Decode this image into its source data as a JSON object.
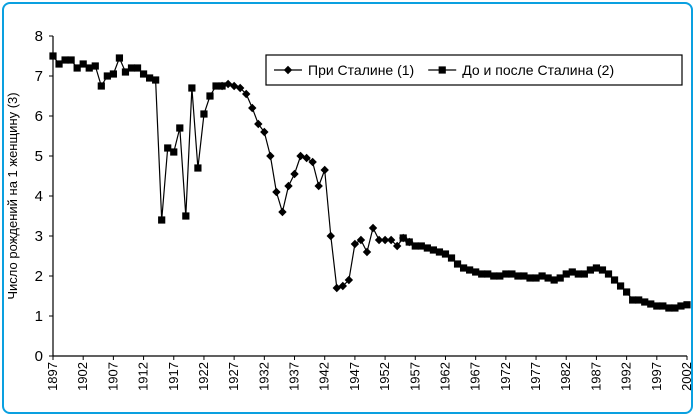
{
  "chart_data": {
    "type": "line",
    "title": "",
    "xlabel": "",
    "ylabel": "Число рождений на 1 женщину (3)",
    "xlim": [
      1897,
      2002
    ],
    "ylim": [
      0,
      8
    ],
    "yticks": [
      0,
      1,
      2,
      3,
      4,
      5,
      6,
      7,
      8
    ],
    "xticks": [
      1897,
      1902,
      1907,
      1912,
      1917,
      1922,
      1927,
      1932,
      1937,
      1942,
      1947,
      1952,
      1957,
      1962,
      1967,
      1972,
      1977,
      1982,
      1987,
      1992,
      1997,
      2002
    ],
    "legend_position": "top-right",
    "grid": false,
    "colors": {
      "line": "#000000",
      "frame": "#0aa0e0"
    },
    "series": [
      {
        "name": "При Сталине (1)",
        "marker": "diamond",
        "points": [
          [
            1925,
            6.75
          ],
          [
            1926,
            6.8
          ],
          [
            1927,
            6.75
          ],
          [
            1928,
            6.7
          ],
          [
            1929,
            6.55
          ],
          [
            1930,
            6.2
          ],
          [
            1931,
            5.8
          ],
          [
            1932,
            5.6
          ],
          [
            1933,
            5.0
          ],
          [
            1934,
            4.1
          ],
          [
            1935,
            3.6
          ],
          [
            1936,
            4.25
          ],
          [
            1937,
            4.55
          ],
          [
            1938,
            5.0
          ],
          [
            1939,
            4.95
          ],
          [
            1940,
            4.85
          ],
          [
            1941,
            4.25
          ],
          [
            1942,
            4.65
          ],
          [
            1943,
            3.0
          ],
          [
            1944,
            1.7
          ],
          [
            1945,
            1.75
          ],
          [
            1946,
            1.9
          ],
          [
            1947,
            2.8
          ],
          [
            1948,
            2.9
          ],
          [
            1949,
            2.6
          ],
          [
            1950,
            3.2
          ],
          [
            1951,
            2.9
          ],
          [
            1952,
            2.9
          ],
          [
            1953,
            2.9
          ],
          [
            1954,
            2.75
          ],
          [
            1955,
            2.95
          ],
          [
            1956,
            2.85
          ]
        ]
      },
      {
        "name": "До и после Сталина (2)",
        "marker": "square",
        "points": [
          [
            1897,
            7.5
          ],
          [
            1898,
            7.3
          ],
          [
            1899,
            7.4
          ],
          [
            1900,
            7.4
          ],
          [
            1901,
            7.2
          ],
          [
            1902,
            7.3
          ],
          [
            1903,
            7.2
          ],
          [
            1904,
            7.25
          ],
          [
            1905,
            6.75
          ],
          [
            1906,
            7.0
          ],
          [
            1907,
            7.05
          ],
          [
            1908,
            7.45
          ],
          [
            1909,
            7.1
          ],
          [
            1910,
            7.2
          ],
          [
            1911,
            7.2
          ],
          [
            1912,
            7.05
          ],
          [
            1913,
            6.95
          ],
          [
            1914,
            6.9
          ],
          [
            1915,
            3.4
          ],
          [
            1916,
            5.2
          ],
          [
            1917,
            5.1
          ],
          [
            1918,
            5.7
          ],
          [
            1919,
            3.5
          ],
          [
            1920,
            6.7
          ],
          [
            1921,
            4.7
          ],
          [
            1922,
            6.05
          ],
          [
            1923,
            6.5
          ],
          [
            1924,
            6.75
          ],
          [
            1925,
            6.75
          ],
          [
            1955,
            2.95
          ],
          [
            1956,
            2.85
          ],
          [
            1957,
            2.75
          ],
          [
            1958,
            2.75
          ],
          [
            1959,
            2.7
          ],
          [
            1960,
            2.65
          ],
          [
            1961,
            2.6
          ],
          [
            1962,
            2.55
          ],
          [
            1963,
            2.45
          ],
          [
            1964,
            2.3
          ],
          [
            1965,
            2.2
          ],
          [
            1966,
            2.15
          ],
          [
            1967,
            2.1
          ],
          [
            1968,
            2.05
          ],
          [
            1969,
            2.05
          ],
          [
            1970,
            2.0
          ],
          [
            1971,
            2.0
          ],
          [
            1972,
            2.05
          ],
          [
            1973,
            2.05
          ],
          [
            1974,
            2.0
          ],
          [
            1975,
            2.0
          ],
          [
            1976,
            1.95
          ],
          [
            1977,
            1.95
          ],
          [
            1978,
            2.0
          ],
          [
            1979,
            1.95
          ],
          [
            1980,
            1.9
          ],
          [
            1981,
            1.95
          ],
          [
            1982,
            2.05
          ],
          [
            1983,
            2.1
          ],
          [
            1984,
            2.05
          ],
          [
            1985,
            2.05
          ],
          [
            1986,
            2.15
          ],
          [
            1987,
            2.2
          ],
          [
            1988,
            2.15
          ],
          [
            1989,
            2.05
          ],
          [
            1990,
            1.9
          ],
          [
            1991,
            1.75
          ],
          [
            1992,
            1.6
          ],
          [
            1993,
            1.4
          ],
          [
            1994,
            1.4
          ],
          [
            1995,
            1.35
          ],
          [
            1996,
            1.3
          ],
          [
            1997,
            1.25
          ],
          [
            1998,
            1.25
          ],
          [
            1999,
            1.2
          ],
          [
            2000,
            1.2
          ],
          [
            2001,
            1.25
          ],
          [
            2002,
            1.28
          ]
        ]
      }
    ]
  }
}
